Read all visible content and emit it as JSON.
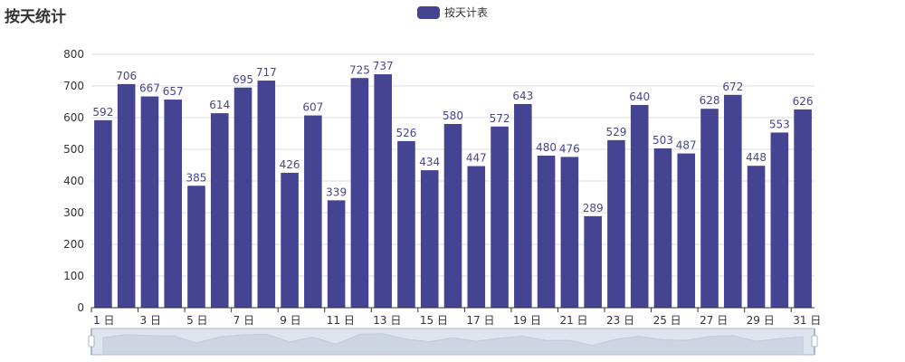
{
  "colors": {
    "bar": "#444493",
    "grid": "#dddddd",
    "axis": "#333333",
    "zoom_bg": "#dfe5ee",
    "zoom_fill": "#c9d1e0",
    "zoom_handle": "#a7b7cc"
  },
  "chart_data": {
    "type": "bar",
    "title": "按天统计",
    "legend": [
      "按天计表"
    ],
    "legend_position": "top-center",
    "categories": [
      "1 日",
      "2 日",
      "3 日",
      "4 日",
      "5 日",
      "6 日",
      "7 日",
      "8 日",
      "9 日",
      "10 日",
      "11 日",
      "12 日",
      "13 日",
      "14 日",
      "15 日",
      "16 日",
      "17 日",
      "18 日",
      "19 日",
      "20 日",
      "21 日",
      "22 日",
      "23 日",
      "24 日",
      "25 日",
      "26 日",
      "27 日",
      "28 日",
      "29 日",
      "30 日",
      "31 日"
    ],
    "x_tick_labels": [
      "1 日",
      "3 日",
      "5 日",
      "7 日",
      "9 日",
      "11 日",
      "13 日",
      "15 日",
      "17 日",
      "19 日",
      "21 日",
      "23 日",
      "25 日",
      "27 日",
      "29 日",
      "31 日"
    ],
    "series": [
      {
        "name": "按天计表",
        "values": [
          592,
          706,
          667,
          657,
          385,
          614,
          695,
          717,
          426,
          607,
          339,
          725,
          737,
          526,
          434,
          580,
          447,
          572,
          643,
          480,
          476,
          289,
          529,
          640,
          503,
          487,
          628,
          672,
          448,
          553,
          626
        ]
      }
    ],
    "ylim": [
      0,
      800
    ],
    "y_ticks": [
      0,
      100,
      200,
      300,
      400,
      500,
      600,
      700,
      800
    ],
    "grid": true,
    "data_labels": true,
    "data_zoom": {
      "start": 0,
      "end": 100
    }
  }
}
